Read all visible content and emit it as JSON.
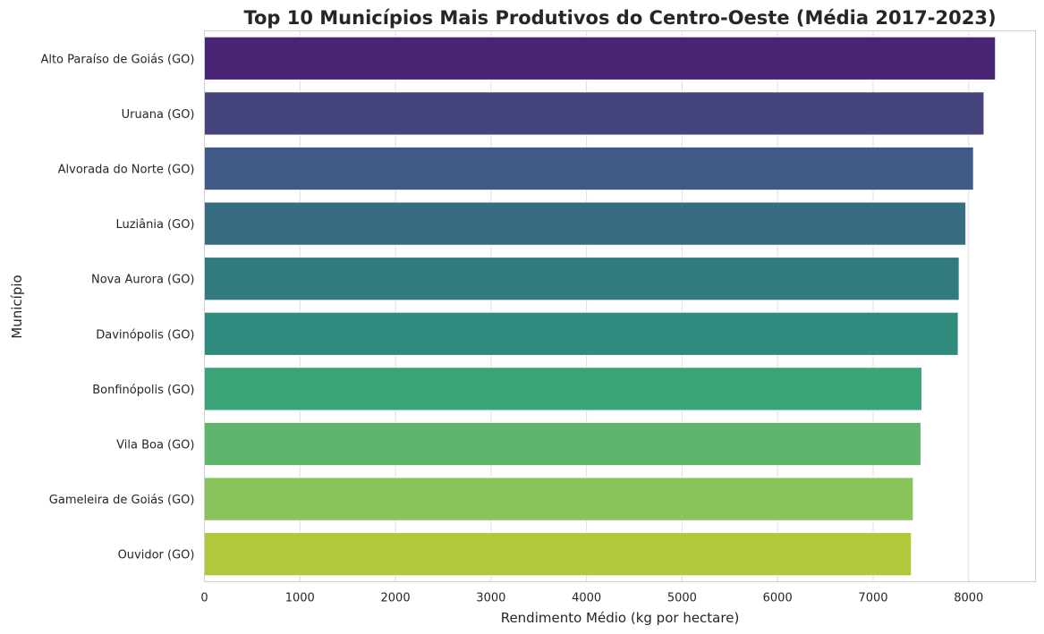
{
  "chart_data": {
    "type": "bar",
    "orientation": "horizontal",
    "title": "Top 10 Municípios Mais Produtivos do Centro-Oeste (Média 2017-2023)",
    "xlabel": "Rendimento Médio (kg por hectare)",
    "ylabel": "Município",
    "categories": [
      "Alto Paraíso de Goiás (GO)",
      "Uruana (GO)",
      "Alvorada do Norte (GO)",
      "Luziânia (GO)",
      "Nova Aurora (GO)",
      "Davinópolis (GO)",
      "Bonfinópolis (GO)",
      "Vila Boa (GO)",
      "Gameleira de Goiás (GO)",
      "Ouvidor (GO)"
    ],
    "values": [
      8280,
      8160,
      8050,
      7970,
      7900,
      7890,
      7510,
      7500,
      7420,
      7400
    ],
    "colors": [
      "#482475",
      "#46447d",
      "#415a85",
      "#366d80",
      "#317a80",
      "#2e8b7d",
      "#3aa378",
      "#5fb56b",
      "#88c35b",
      "#b1c83a"
    ],
    "xlim": [
      0,
      8700
    ],
    "xticks": [
      0,
      1000,
      2000,
      3000,
      4000,
      5000,
      6000,
      7000,
      8000
    ],
    "xtick_labels": [
      "0",
      "1000",
      "2000",
      "3000",
      "4000",
      "5000",
      "6000",
      "7000",
      "8000"
    ],
    "grid": true,
    "legend": "none"
  }
}
